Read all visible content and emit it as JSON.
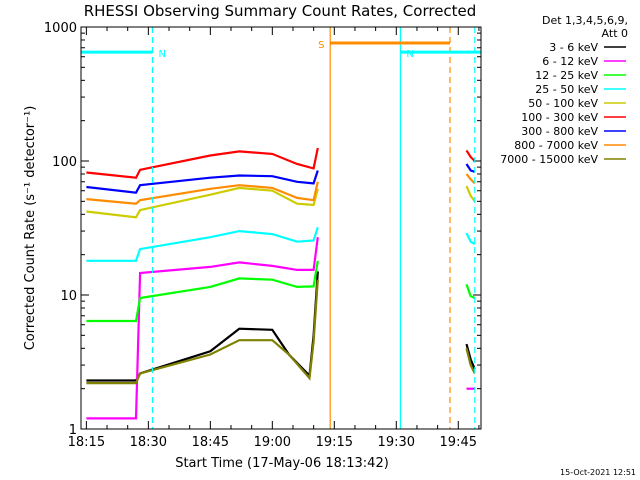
{
  "chart_data": {
    "type": "line",
    "title": "RHESSI Observing Summary Count Rates, Corrected",
    "xlabel": "Start Time (17-May-06 18:13:42)",
    "ylabel": "Corrected Count Rate (s⁻¹ detector⁻¹)",
    "xlim": [
      "18:13:42",
      "19:50:30"
    ],
    "ylim": [
      1,
      1000
    ],
    "yscale": "log",
    "x_ticks": [
      "18:15",
      "18:30",
      "18:45",
      "19:00",
      "19:15",
      "19:30",
      "19:45"
    ],
    "y_ticks": [
      {
        "value": 1,
        "label": "1"
      },
      {
        "value": 10,
        "label": "10"
      },
      {
        "value": 100,
        "label": "100"
      },
      {
        "value": 1000,
        "label": "1000"
      }
    ],
    "legend_header": [
      "Det 1,3,4,5,6,9,",
      "Att 0"
    ],
    "legend_position": "right",
    "timestamp": "15-Oct-2021 12:51",
    "series": [
      {
        "name": "3 - 6 keV",
        "color": "#000000",
        "points": [
          [
            "18:15",
            2.3
          ],
          [
            "18:27",
            2.3
          ],
          [
            "18:28",
            2.6
          ],
          [
            "18:45",
            3.8
          ],
          [
            "18:52",
            5.6
          ],
          [
            "19:00",
            5.5
          ],
          [
            "19:04",
            3.6
          ],
          [
            "19:09",
            2.5
          ],
          [
            "19:10",
            5.0
          ],
          [
            "19:11",
            15
          ],
          [
            "19:47",
            4.3
          ],
          [
            "19:48",
            3.3
          ],
          [
            "19:49",
            2.8
          ]
        ]
      },
      {
        "name": "6 - 12 keV",
        "color": "#ff00ff",
        "points": [
          [
            "18:15",
            1.2
          ],
          [
            "18:27",
            1.2
          ],
          [
            "18:28",
            14.6
          ],
          [
            "18:45",
            16.2
          ],
          [
            "18:52",
            17.5
          ],
          [
            "19:00",
            16.5
          ],
          [
            "19:06",
            15.4
          ],
          [
            "19:10",
            15.4
          ],
          [
            "19:11",
            27
          ],
          [
            "19:47",
            2.0
          ],
          [
            "19:49",
            2.0
          ]
        ]
      },
      {
        "name": "12 - 25 keV",
        "color": "#00ff00",
        "points": [
          [
            "18:15",
            6.4
          ],
          [
            "18:27",
            6.4
          ],
          [
            "18:28",
            9.5
          ],
          [
            "18:45",
            11.5
          ],
          [
            "18:52",
            13.3
          ],
          [
            "19:00",
            13.0
          ],
          [
            "19:06",
            11.5
          ],
          [
            "19:10",
            11.6
          ],
          [
            "19:11",
            18
          ],
          [
            "19:47",
            12
          ],
          [
            "19:48",
            9.8
          ],
          [
            "19:49",
            9.5
          ]
        ]
      },
      {
        "name": "25 - 50 keV",
        "color": "#00ffff",
        "points": [
          [
            "18:15",
            18
          ],
          [
            "18:27",
            18
          ],
          [
            "18:28",
            22
          ],
          [
            "18:45",
            27
          ],
          [
            "18:52",
            30
          ],
          [
            "19:00",
            28.5
          ],
          [
            "19:06",
            25
          ],
          [
            "19:10",
            25.5
          ],
          [
            "19:11",
            32
          ],
          [
            "19:47",
            29
          ],
          [
            "19:48",
            25
          ],
          [
            "19:49",
            24
          ]
        ]
      },
      {
        "name": "50 - 100 keV",
        "color": "#cccc00",
        "points": [
          [
            "18:15",
            42
          ],
          [
            "18:27",
            38
          ],
          [
            "18:28",
            43
          ],
          [
            "18:45",
            56
          ],
          [
            "18:52",
            63
          ],
          [
            "19:00",
            60
          ],
          [
            "19:06",
            48
          ],
          [
            "19:10",
            47
          ],
          [
            "19:11",
            62
          ],
          [
            "19:47",
            65
          ],
          [
            "19:48",
            55
          ],
          [
            "19:49",
            50
          ]
        ]
      },
      {
        "name": "100 - 300 keV",
        "color": "#ff0000",
        "points": [
          [
            "18:15",
            82
          ],
          [
            "18:27",
            75
          ],
          [
            "18:28",
            86
          ],
          [
            "18:45",
            110
          ],
          [
            "18:52",
            118
          ],
          [
            "19:00",
            113
          ],
          [
            "19:06",
            95
          ],
          [
            "19:10",
            88
          ],
          [
            "19:11",
            125
          ],
          [
            "19:47",
            120
          ],
          [
            "19:48",
            107
          ],
          [
            "19:49",
            100
          ]
        ]
      },
      {
        "name": "300 - 800 keV",
        "color": "#0000ff",
        "points": [
          [
            "18:15",
            64
          ],
          [
            "18:27",
            58
          ],
          [
            "18:28",
            66
          ],
          [
            "18:45",
            75
          ],
          [
            "18:52",
            78
          ],
          [
            "19:00",
            77
          ],
          [
            "19:06",
            70
          ],
          [
            "19:10",
            68
          ],
          [
            "19:11",
            85
          ],
          [
            "19:47",
            95
          ],
          [
            "19:48",
            85
          ],
          [
            "19:49",
            83
          ]
        ]
      },
      {
        "name": "800 - 7000 keV",
        "color": "#ff8c00",
        "points": [
          [
            "18:15",
            52
          ],
          [
            "18:27",
            48
          ],
          [
            "18:28",
            51
          ],
          [
            "18:45",
            62
          ],
          [
            "18:52",
            66
          ],
          [
            "19:00",
            63
          ],
          [
            "19:06",
            53
          ],
          [
            "19:10",
            51
          ],
          [
            "19:11",
            70
          ],
          [
            "19:47",
            80
          ],
          [
            "19:48",
            73
          ],
          [
            "19:49",
            68
          ]
        ]
      },
      {
        "name": "7000 - 15000 keV",
        "color": "#808000",
        "points": [
          [
            "18:15",
            2.2
          ],
          [
            "18:27",
            2.2
          ],
          [
            "18:28",
            2.6
          ],
          [
            "18:45",
            3.6
          ],
          [
            "18:52",
            4.6
          ],
          [
            "19:00",
            4.6
          ],
          [
            "19:04",
            3.6
          ],
          [
            "19:09",
            2.4
          ],
          [
            "19:10",
            4.5
          ],
          [
            "19:11",
            13
          ],
          [
            "19:47",
            4.0
          ],
          [
            "19:48",
            3.0
          ],
          [
            "19:49",
            2.6
          ]
        ]
      }
    ],
    "annotations": [
      {
        "label": "N",
        "color": "#00ffff",
        "x_start": "18:13:42",
        "x_end": "18:31:00",
        "y": 650
      },
      {
        "label": "N",
        "color": "#00ffff",
        "x_start": "19:31:00",
        "x_end": "19:50:30",
        "y": 650
      },
      {
        "label": "S",
        "color": "#ff8c00",
        "x_start": "19:14:00",
        "x_end": "19:43:00",
        "y": 760
      }
    ],
    "vertical_markers": [
      {
        "x": "18:31:00",
        "color": "#00ffff",
        "style": "dashed"
      },
      {
        "x": "19:14:00",
        "color": "#ff8c00",
        "style": "solid"
      },
      {
        "x": "19:31:00",
        "color": "#00ffff",
        "style": "solid"
      },
      {
        "x": "19:43:00",
        "color": "#ff8c00",
        "style": "dashed"
      },
      {
        "x": "19:49:00",
        "color": "#00ffff",
        "style": "dashed"
      }
    ],
    "data_gaps": [
      [
        "19:11:30",
        "19:43:30"
      ]
    ]
  }
}
